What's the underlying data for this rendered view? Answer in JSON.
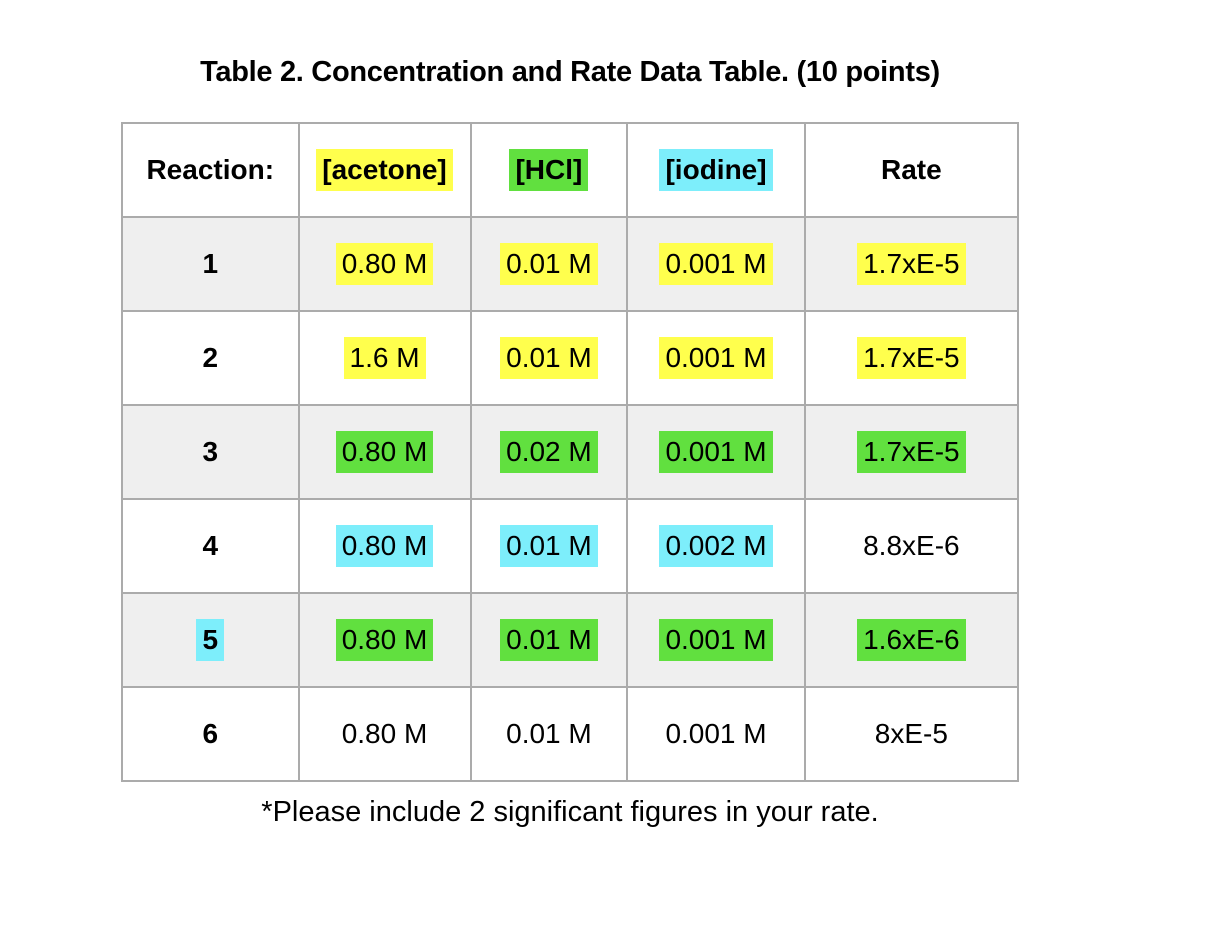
{
  "title": "Table 2. Concentration and Rate Data Table. (10 points)",
  "footer": "*Please include 2 significant figures in your rate.",
  "colors": {
    "yellow": "#FFFF4D",
    "green": "#61E03F",
    "cyan": "#7DEEFB",
    "row_alt": "#EFEFEF",
    "border": "#ABABAB"
  },
  "table": {
    "headers": [
      {
        "label": "Reaction:",
        "highlight": "none"
      },
      {
        "label": "[acetone]",
        "highlight": "yellow"
      },
      {
        "label": "[HCl]",
        "highlight": "green"
      },
      {
        "label": "[iodine]",
        "highlight": "cyan"
      },
      {
        "label": "Rate",
        "highlight": "none"
      }
    ],
    "rows": [
      {
        "cells": [
          {
            "text": "1",
            "highlight": "none"
          },
          {
            "text": "0.80 M",
            "highlight": "yellow"
          },
          {
            "text": "0.01 M",
            "highlight": "yellow"
          },
          {
            "text": "0.001 M",
            "highlight": "yellow"
          },
          {
            "text": "1.7xE-5",
            "highlight": "yellow"
          }
        ]
      },
      {
        "cells": [
          {
            "text": "2",
            "highlight": "none"
          },
          {
            "text": "1.6 M",
            "highlight": "yellow"
          },
          {
            "text": "0.01 M",
            "highlight": "yellow"
          },
          {
            "text": "0.001 M",
            "highlight": "yellow"
          },
          {
            "text": "1.7xE-5",
            "highlight": "yellow"
          }
        ]
      },
      {
        "cells": [
          {
            "text": "3",
            "highlight": "none"
          },
          {
            "text": "0.80 M",
            "highlight": "green"
          },
          {
            "text": "0.02 M",
            "highlight": "green"
          },
          {
            "text": "0.001 M",
            "highlight": "green"
          },
          {
            "text": "1.7xE-5",
            "highlight": "green"
          }
        ]
      },
      {
        "cells": [
          {
            "text": "4",
            "highlight": "none"
          },
          {
            "text": "0.80 M",
            "highlight": "cyan"
          },
          {
            "text": "0.01 M",
            "highlight": "cyan"
          },
          {
            "text": "0.002 M",
            "highlight": "cyan"
          },
          {
            "text": "8.8xE-6",
            "highlight": "none"
          }
        ]
      },
      {
        "cells": [
          {
            "text": "5",
            "highlight": "cyan"
          },
          {
            "text": "0.80 M",
            "highlight": "green"
          },
          {
            "text": "0.01 M",
            "highlight": "green"
          },
          {
            "text": "0.001 M",
            "highlight": "green"
          },
          {
            "text": "1.6xE-6",
            "highlight": "green"
          }
        ]
      },
      {
        "cells": [
          {
            "text": "6",
            "highlight": "none"
          },
          {
            "text": "0.80 M",
            "highlight": "none"
          },
          {
            "text": "0.01 M",
            "highlight": "none"
          },
          {
            "text": "0.001 M",
            "highlight": "none"
          },
          {
            "text": "8xE-5",
            "highlight": "none"
          }
        ]
      }
    ]
  }
}
